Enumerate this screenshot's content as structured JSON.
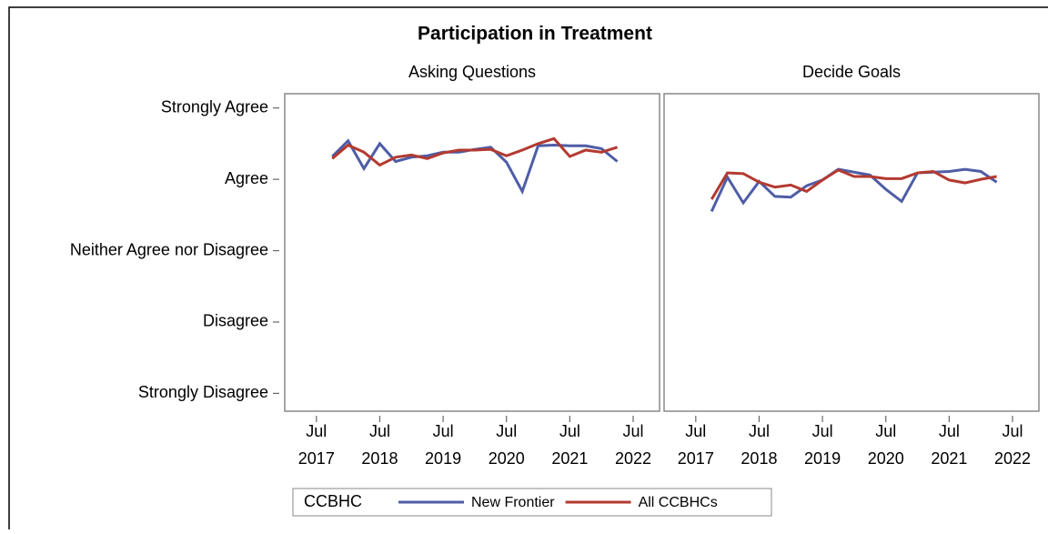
{
  "title": "Participation in Treatment",
  "legend_title": "CCBHC",
  "chart_data": [
    {
      "type": "line",
      "subtitle": "Asking Questions",
      "x": [
        "2017-10",
        "2018-01",
        "2018-04",
        "2018-07",
        "2018-10",
        "2019-01",
        "2019-04",
        "2019-07",
        "2019-10",
        "2020-01",
        "2020-04",
        "2020-07",
        "2020-10",
        "2021-01",
        "2021-04",
        "2021-07",
        "2021-10",
        "2022-01",
        "2022-04"
      ],
      "xlim": [
        "2017-01",
        "2022-12"
      ],
      "xticks": [
        {
          "value": "2017-07",
          "label": "Jul 2017"
        },
        {
          "value": "2018-07",
          "label": "Jul 2018"
        },
        {
          "value": "2019-07",
          "label": "Jul 2019"
        },
        {
          "value": "2020-07",
          "label": "Jul 2020"
        },
        {
          "value": "2021-07",
          "label": "Jul 2021"
        },
        {
          "value": "2022-07",
          "label": "Jul 2022"
        }
      ],
      "ylim": [
        0.75,
        5.2
      ],
      "yticks": [
        {
          "value": 5,
          "label": "Strongly Agree"
        },
        {
          "value": 4,
          "label": "Agree"
        },
        {
          "value": 3,
          "label": "Neither Agree nor Disagree"
        },
        {
          "value": 2,
          "label": "Disagree"
        },
        {
          "value": 1,
          "label": "Strongly Disagree"
        }
      ],
      "series": [
        {
          "name": "New Frontier",
          "color": "#4e5da6",
          "values": [
            4.32,
            4.54,
            4.15,
            4.5,
            4.25,
            4.31,
            4.33,
            4.38,
            4.38,
            4.42,
            4.45,
            4.24,
            3.83,
            4.47,
            4.48,
            4.47,
            4.47,
            4.43,
            4.25
          ]
        },
        {
          "name": "All CCBHCs",
          "color": "#b33a30",
          "values": [
            4.29,
            4.48,
            4.38,
            4.2,
            4.31,
            4.34,
            4.29,
            4.37,
            4.41,
            4.41,
            4.42,
            4.33,
            4.41,
            4.5,
            4.57,
            4.32,
            4.41,
            4.38,
            4.45
          ]
        }
      ]
    },
    {
      "type": "line",
      "subtitle": "Decide Goals",
      "x": [
        "2017-10",
        "2018-01",
        "2018-04",
        "2018-07",
        "2018-10",
        "2019-01",
        "2019-04",
        "2019-07",
        "2019-10",
        "2020-01",
        "2020-04",
        "2020-07",
        "2020-10",
        "2021-01",
        "2021-04",
        "2021-07",
        "2021-10",
        "2022-01",
        "2022-04"
      ],
      "xlim": [
        "2017-01",
        "2022-12"
      ],
      "xticks": [
        {
          "value": "2017-07",
          "label": "Jul 2017"
        },
        {
          "value": "2018-07",
          "label": "Jul 2018"
        },
        {
          "value": "2019-07",
          "label": "Jul 2019"
        },
        {
          "value": "2020-07",
          "label": "Jul 2020"
        },
        {
          "value": "2021-07",
          "label": "Jul 2021"
        },
        {
          "value": "2022-07",
          "label": "Jul 2022"
        }
      ],
      "ylim": [
        0.75,
        5.2
      ],
      "series": [
        {
          "name": "New Frontier",
          "color": "#4e5da6",
          "values": [
            3.55,
            4.03,
            3.67,
            3.97,
            3.76,
            3.75,
            3.91,
            3.99,
            4.14,
            4.1,
            4.06,
            3.86,
            3.69,
            4.09,
            4.1,
            4.11,
            4.14,
            4.11,
            3.96
          ]
        },
        {
          "name": "All CCBHCs",
          "color": "#b33a30",
          "values": [
            3.72,
            4.09,
            4.08,
            3.96,
            3.89,
            3.92,
            3.83,
            3.99,
            4.13,
            4.04,
            4.04,
            4.01,
            4.01,
            4.09,
            4.11,
            3.99,
            3.95,
            4.0,
            4.04
          ]
        }
      ]
    }
  ]
}
